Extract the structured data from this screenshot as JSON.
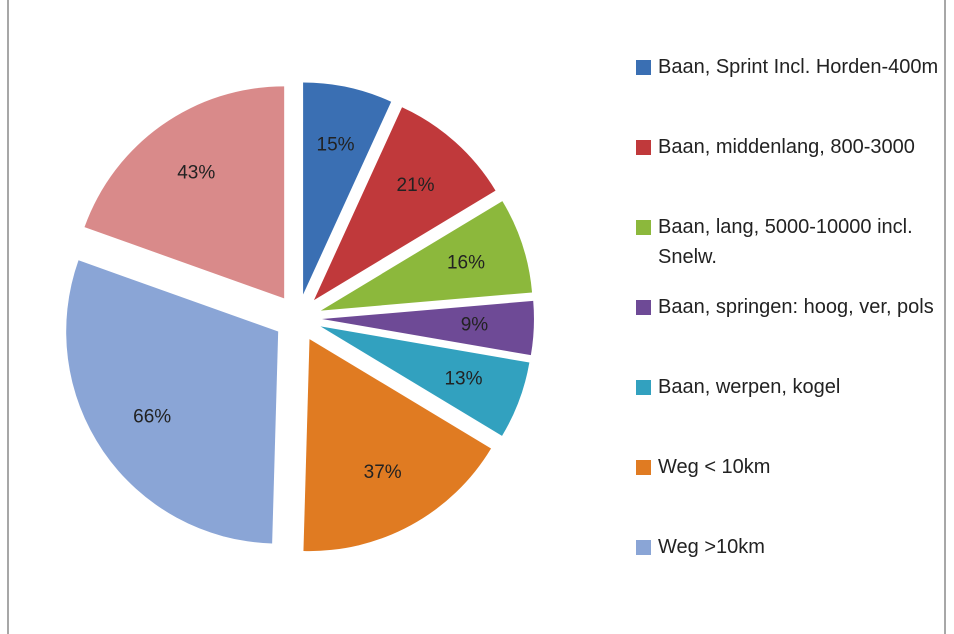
{
  "chart_data": {
    "type": "pie",
    "categories": [
      "Baan, Sprint Incl. Horden-400m",
      "Baan, middenlang, 800-3000",
      "Baan, lang, 5000-10000 incl. Snelw.",
      "Baan, springen: hoog, ver, pols",
      "Baan, werpen, kogel",
      "Weg < 10km",
      "Weg >10km",
      null
    ],
    "values": [
      15,
      21,
      16,
      9,
      13,
      37,
      66,
      43
    ],
    "value_labels": [
      "15%",
      "21%",
      "16%",
      "9%",
      "13%",
      "37%",
      "66%",
      "43%"
    ],
    "colors": [
      "#3a6fb3",
      "#c0393b",
      "#8cb83c",
      "#6e4a96",
      "#32a1bf",
      "#e07b22",
      "#8aa5d6",
      "#d98a8a"
    ],
    "legend": "right"
  }
}
